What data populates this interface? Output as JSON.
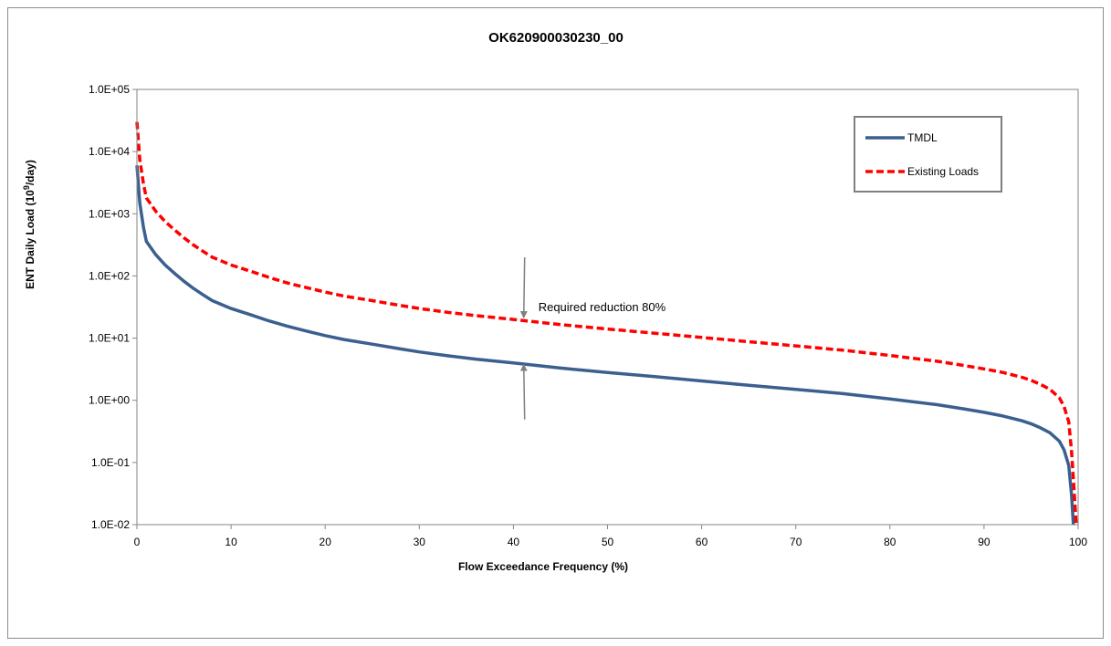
{
  "chart_data": {
    "type": "line",
    "title": "OK620900030230_00",
    "xlabel": "Flow Exceedance Frequency (%)",
    "ylabel_prefix": "ENT Daily Load (10",
    "ylabel_sup": "9",
    "ylabel_suffix": "/day)",
    "xlim": [
      0,
      100
    ],
    "ylim": [
      0.01,
      100000
    ],
    "yscale": "log",
    "grid": false,
    "legend_position": "top-right",
    "x_ticks": [
      0,
      10,
      20,
      30,
      40,
      50,
      60,
      70,
      80,
      90,
      100
    ],
    "x_tick_labels": [
      "0",
      "10",
      "20",
      "30",
      "40",
      "50",
      "60",
      "70",
      "80",
      "90",
      "100"
    ],
    "y_ticks": [
      0.01,
      0.1,
      1,
      10,
      100,
      1000,
      10000,
      100000
    ],
    "y_tick_labels": [
      "1.0E-02",
      "1.0E-01",
      "1.0E+00",
      "1.0E+01",
      "1.0E+02",
      "1.0E+03",
      "1.0E+04",
      "1.0E+05"
    ],
    "series": [
      {
        "name": "TMDL",
        "color": "#3b5f8f",
        "style": "solid",
        "x": [
          0,
          0.3,
          0.7,
          1,
          2,
          3,
          4,
          5,
          6,
          7,
          8,
          10,
          12,
          14,
          16,
          18,
          20,
          22,
          25,
          28,
          30,
          33,
          36,
          40,
          45,
          50,
          55,
          60,
          65,
          70,
          75,
          80,
          85,
          88,
          90,
          92,
          94,
          95,
          96,
          97,
          98,
          98.5,
          99,
          99.3,
          99.5
        ],
        "values": [
          6000,
          1500,
          600,
          360,
          220,
          150,
          110,
          82,
          63,
          50,
          40,
          30,
          24,
          19,
          15.5,
          13,
          11,
          9.5,
          8,
          6.7,
          6,
          5.2,
          4.6,
          4,
          3.3,
          2.8,
          2.4,
          2.05,
          1.75,
          1.5,
          1.28,
          1.05,
          0.85,
          0.72,
          0.64,
          0.56,
          0.47,
          0.42,
          0.36,
          0.3,
          0.22,
          0.16,
          0.09,
          0.03,
          0.01
        ]
      },
      {
        "name": "Existing Loads",
        "color": "#ff0000",
        "style": "dashed",
        "x": [
          0,
          0.3,
          0.7,
          1,
          2,
          3,
          4,
          5,
          6,
          7,
          8,
          10,
          12,
          14,
          16,
          18,
          20,
          22,
          25,
          28,
          30,
          33,
          36,
          40,
          45,
          50,
          55,
          60,
          65,
          70,
          75,
          80,
          85,
          88,
          90,
          92,
          94,
          95,
          96,
          97,
          98,
          98.5,
          99,
          99.3,
          99.6,
          99.8
        ],
        "values": [
          30000,
          7500,
          3000,
          1800,
          1100,
          750,
          550,
          410,
          315,
          250,
          200,
          150,
          120,
          95,
          77,
          65,
          55,
          47.5,
          40,
          33.5,
          30,
          26,
          23,
          20,
          16.5,
          14,
          12,
          10.25,
          8.75,
          7.5,
          6.4,
          5.25,
          4.25,
          3.6,
          3.2,
          2.8,
          2.35,
          2.1,
          1.8,
          1.5,
          1.1,
          0.8,
          0.45,
          0.15,
          0.03,
          0.01
        ]
      }
    ],
    "annotation": {
      "text": "Required reduction  80%",
      "x": 41,
      "y_top": 20,
      "y_bottom": 4
    }
  }
}
